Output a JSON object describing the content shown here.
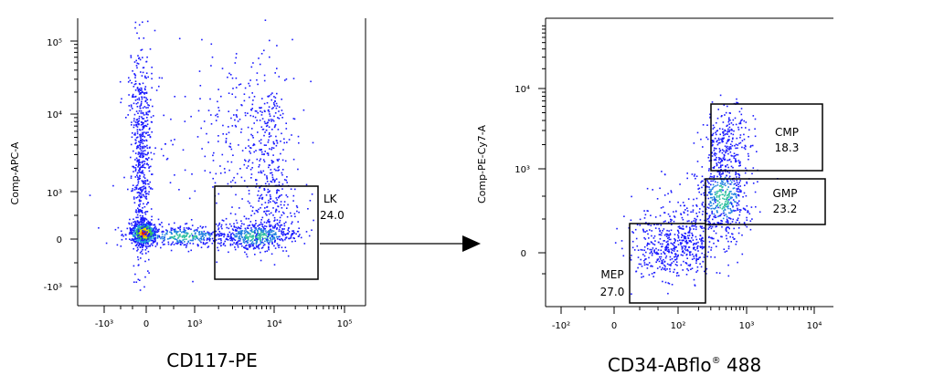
{
  "chart_data": [
    {
      "type": "scatter",
      "title": "",
      "xlabel": "CD117-PE",
      "ylabel": "Comp-APC-A",
      "x_scale": "biexponential",
      "y_scale": "biexponential",
      "x_ticks": [
        "-10³",
        "0",
        "10³",
        "10⁴",
        "10⁵"
      ],
      "y_ticks": [
        "10⁵",
        "10⁴",
        "10³",
        "0",
        "-10³"
      ],
      "gates": [
        {
          "name": "LK",
          "value": "24.0"
        }
      ]
    },
    {
      "type": "scatter",
      "title": "",
      "xlabel": "CD34-ABflo",
      "xlabel_sup": "®",
      "xlabel_tail": " 488",
      "ylabel": "Comp-PE-Cy7-A",
      "x_scale": "biexponential",
      "y_scale": "biexponential",
      "x_ticks": [
        "-10²",
        "0",
        "10²",
        "10³",
        "10⁴"
      ],
      "y_ticks": [
        "10⁴",
        "10³",
        "0"
      ],
      "gates": [
        {
          "name": "CMP",
          "value": "18.3"
        },
        {
          "name": "GMP",
          "value": "23.2"
        },
        {
          "name": "MEP",
          "value": "27.0"
        }
      ]
    }
  ]
}
